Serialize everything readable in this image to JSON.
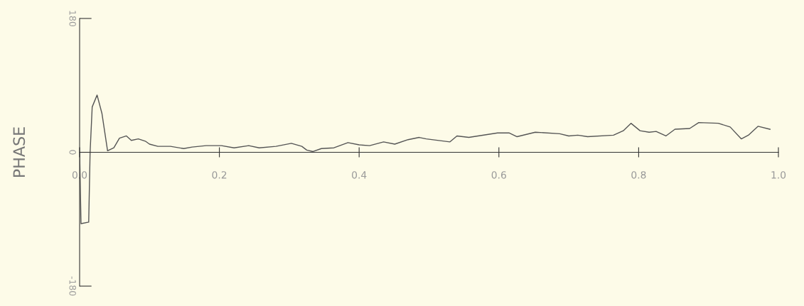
{
  "chart_data": {
    "type": "line",
    "ylabel": "PHASE",
    "x": [
      0,
      0.002,
      0.013,
      0.015,
      0.018,
      0.025,
      0.032,
      0.04,
      0.049,
      0.057,
      0.067,
      0.074,
      0.084,
      0.094,
      0.1,
      0.112,
      0.13,
      0.149,
      0.161,
      0.181,
      0.203,
      0.221,
      0.242,
      0.257,
      0.281,
      0.303,
      0.318,
      0.325,
      0.334,
      0.346,
      0.364,
      0.384,
      0.4,
      0.415,
      0.435,
      0.451,
      0.47,
      0.486,
      0.496,
      0.53,
      0.54,
      0.557,
      0.598,
      0.615,
      0.626,
      0.652,
      0.687,
      0.7,
      0.713,
      0.727,
      0.764,
      0.778,
      0.789,
      0.802,
      0.815,
      0.825,
      0.839,
      0.852,
      0.873,
      0.886,
      0.914,
      0.931,
      0.947,
      0.957,
      0.971,
      0.988
    ],
    "series": [
      {
        "color": "#555555",
        "values": [
          0,
          -96,
          -94,
          0,
          61,
          77,
          52,
          2,
          6,
          19,
          22,
          16,
          18,
          15,
          11,
          8,
          8,
          5,
          7,
          9,
          9,
          6,
          9,
          6,
          8,
          12,
          8,
          3,
          1,
          5,
          6,
          13,
          10,
          9,
          14,
          11,
          17,
          20,
          18,
          14,
          22,
          20,
          26,
          26,
          21,
          27,
          25,
          22,
          23,
          21,
          23,
          29,
          39,
          29,
          27,
          28,
          22,
          31,
          32,
          40,
          39,
          34,
          18,
          23,
          35,
          31
        ]
      }
    ],
    "xlim": [
      0,
      1.0
    ],
    "ylim": [
      -180,
      180
    ],
    "xticks": [
      {
        "value": 0,
        "label": "0.0"
      },
      {
        "value": 0.2,
        "label": "0.2"
      },
      {
        "value": 0.4,
        "label": "0.4"
      },
      {
        "value": 0.6,
        "label": "0.6"
      },
      {
        "value": 0.8,
        "label": "0.8"
      },
      {
        "value": 1.0,
        "label": "1.0"
      }
    ],
    "yticks": [
      -180,
      0,
      180
    ],
    "grid": false,
    "marker": "none",
    "line_style": "solid"
  }
}
